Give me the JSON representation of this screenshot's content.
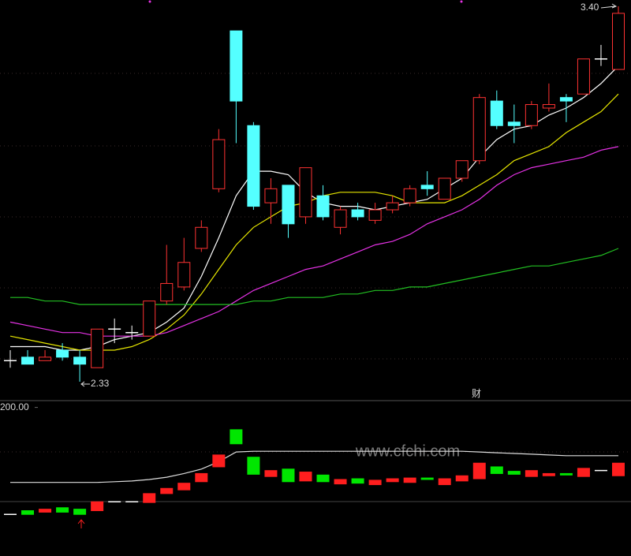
{
  "chart_data": [
    {
      "type": "candlestick",
      "up_color": "#ff3232",
      "down_color": "#54ffff",
      "open": [
        2.39,
        2.4,
        2.39,
        2.42,
        2.4,
        2.37,
        2.48,
        2.47,
        2.46,
        2.56,
        2.6,
        2.71,
        2.88,
        3.33,
        3.06,
        2.84,
        2.89,
        2.8,
        2.86,
        2.77,
        2.82,
        2.79,
        2.82,
        2.84,
        2.89,
        2.85,
        2.91,
        2.96,
        3.13,
        3.07,
        3.06,
        3.11,
        3.14,
        3.15,
        3.25,
        3.22
      ],
      "high": [
        2.42,
        2.42,
        2.42,
        2.44,
        2.42,
        2.48,
        2.51,
        2.49,
        2.56,
        2.72,
        2.74,
        2.79,
        3.05,
        3.33,
        3.07,
        2.91,
        2.89,
        2.94,
        2.89,
        2.83,
        2.84,
        2.84,
        2.86,
        2.89,
        2.93,
        2.91,
        2.96,
        3.15,
        3.16,
        3.12,
        3.13,
        3.18,
        3.15,
        3.25,
        3.29,
        3.4
      ],
      "low": [
        2.37,
        2.38,
        2.39,
        2.39,
        2.33,
        2.37,
        2.44,
        2.45,
        2.46,
        2.55,
        2.59,
        2.7,
        2.87,
        3.01,
        2.82,
        2.78,
        2.74,
        2.78,
        2.79,
        2.75,
        2.79,
        2.78,
        2.81,
        2.83,
        2.86,
        2.85,
        2.9,
        2.95,
        3.05,
        3.01,
        3.05,
        3.1,
        3.07,
        3.15,
        3.23,
        3.22
      ],
      "close": [
        2.39,
        2.38,
        2.4,
        2.4,
        2.38,
        2.48,
        2.48,
        2.47,
        2.56,
        2.61,
        2.67,
        2.77,
        3.02,
        3.13,
        2.83,
        2.88,
        2.78,
        2.94,
        2.8,
        2.82,
        2.8,
        2.82,
        2.84,
        2.88,
        2.88,
        2.91,
        2.96,
        3.14,
        3.06,
        3.06,
        3.12,
        3.12,
        3.13,
        3.25,
        3.25,
        3.38
      ],
      "series": [
        {
          "color": "#ffffff",
          "values": [
            2.43,
            2.43,
            2.43,
            2.42,
            2.42,
            2.43,
            2.45,
            2.46,
            2.47,
            2.5,
            2.54,
            2.63,
            2.74,
            2.86,
            2.93,
            2.93,
            2.92,
            2.87,
            2.84,
            2.83,
            2.83,
            2.82,
            2.83,
            2.84,
            2.85,
            2.88,
            2.91,
            2.97,
            3.02,
            3.05,
            3.06,
            3.09,
            3.11,
            3.14,
            3.18,
            3.23
          ]
        },
        {
          "color": "#e6e600",
          "values": [
            2.46,
            2.45,
            2.44,
            2.43,
            2.42,
            2.42,
            2.42,
            2.43,
            2.45,
            2.48,
            2.52,
            2.58,
            2.65,
            2.72,
            2.77,
            2.8,
            2.83,
            2.84,
            2.86,
            2.87,
            2.87,
            2.87,
            2.86,
            2.84,
            2.84,
            2.84,
            2.86,
            2.89,
            2.92,
            2.96,
            2.98,
            3.0,
            3.04,
            3.07,
            3.1,
            3.15
          ]
        },
        {
          "color": "#e632e6",
          "values": [
            2.5,
            2.49,
            2.48,
            2.47,
            2.47,
            2.46,
            2.46,
            2.46,
            2.46,
            2.47,
            2.49,
            2.51,
            2.53,
            2.56,
            2.59,
            2.61,
            2.63,
            2.65,
            2.66,
            2.68,
            2.7,
            2.72,
            2.73,
            2.75,
            2.78,
            2.8,
            2.82,
            2.85,
            2.89,
            2.92,
            2.94,
            2.95,
            2.96,
            2.97,
            2.99,
            3.0
          ]
        },
        {
          "color": "#22c022",
          "values": [
            2.57,
            2.57,
            2.56,
            2.56,
            2.55,
            2.55,
            2.55,
            2.55,
            2.55,
            2.55,
            2.55,
            2.55,
            2.55,
            2.55,
            2.56,
            2.56,
            2.57,
            2.57,
            2.57,
            2.58,
            2.58,
            2.59,
            2.59,
            2.6,
            2.6,
            2.61,
            2.62,
            2.63,
            2.64,
            2.65,
            2.66,
            2.66,
            2.67,
            2.68,
            2.69,
            2.71
          ]
        }
      ],
      "annotations": [
        "3.40",
        "2.33",
        "财"
      ]
    },
    {
      "type": "candlestick",
      "up_color": "#ff1e1e",
      "down_color": "#00e600",
      "ylim": [
        0,
        207
      ],
      "yticks": [
        {
          "value": 200,
          "label": "200.00"
        }
      ],
      "open": [
        56,
        61,
        59,
        65,
        63,
        61,
        73,
        73,
        72,
        84,
        89,
        100,
        120,
        170,
        133,
        107,
        117,
        101,
        109,
        97,
        104,
        96,
        100,
        99,
        105,
        96,
        101,
        104,
        120,
        114,
        107,
        108,
        111,
        107,
        115,
        108
      ],
      "close": [
        56,
        56,
        63,
        59,
        56,
        73,
        73,
        73,
        84,
        91,
        98,
        111,
        136,
        151,
        110,
        115,
        100,
        113,
        100,
        103,
        98,
        102,
        104,
        105,
        103,
        104,
        108,
        125,
        111,
        110,
        115,
        111,
        109,
        118,
        115,
        125
      ],
      "series": [
        {
          "color": "#dddddd",
          "values": [
            99,
            99,
            99,
            99,
            99,
            99,
            100,
            101,
            103,
            106,
            111,
            117,
            127,
            140,
            141,
            141,
            141,
            141,
            141,
            141,
            141,
            141,
            141,
            141,
            141,
            141,
            141,
            140,
            139,
            138,
            137,
            136,
            135,
            135,
            135,
            135
          ]
        }
      ],
      "watermark": "www.cfchi.com"
    }
  ]
}
